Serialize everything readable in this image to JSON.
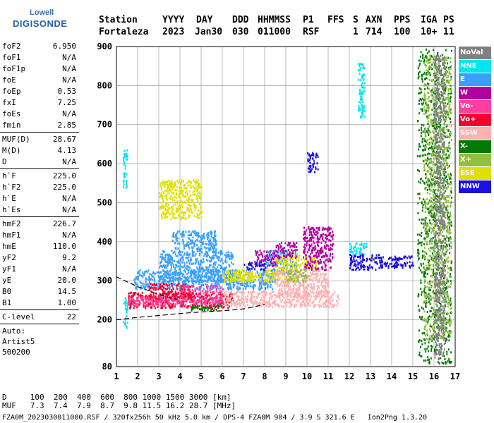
{
  "logo": {
    "line1": "Lowell",
    "line2": "DIGISONDE"
  },
  "header": {
    "labels": [
      "Station",
      "YYYY",
      "DAY",
      "DDD",
      "HHMMSS",
      "P1",
      "FFS",
      "S",
      "AXN",
      "PPS",
      "IGA",
      "PS"
    ],
    "values": [
      "Fortaleza",
      "2023",
      "Jan30",
      "030",
      "011000",
      "RSF",
      "",
      "1",
      "714",
      "100",
      "10+",
      "11"
    ]
  },
  "params": [
    [
      {
        "name": "foF2",
        "value": "6.950"
      },
      {
        "name": "foF1",
        "value": "N/A"
      },
      {
        "name": "foF1p",
        "value": "N/A"
      },
      {
        "name": "foE",
        "value": "N/A"
      },
      {
        "name": "foEp",
        "value": "0.53"
      },
      {
        "name": "fxI",
        "value": "7.25"
      },
      {
        "name": "foEs",
        "value": "N/A"
      },
      {
        "name": "fmin",
        "value": "2.85"
      }
    ],
    [
      {
        "name": "MUF(D)",
        "value": "28.67"
      },
      {
        "name": "M(D)",
        "value": "4.13"
      },
      {
        "name": "D",
        "value": "N/A"
      }
    ],
    [
      {
        "name": "h`F",
        "value": "225.0"
      },
      {
        "name": "h`F2",
        "value": "225.0"
      },
      {
        "name": "h`E",
        "value": "N/A"
      },
      {
        "name": "h`Es",
        "value": "N/A"
      }
    ],
    [
      {
        "name": "hmF2",
        "value": "226.7"
      },
      {
        "name": "hmF1",
        "value": "N/A"
      },
      {
        "name": "hmE",
        "value": "110.0"
      },
      {
        "name": "yF2",
        "value": "9.2"
      },
      {
        "name": "yF1",
        "value": "N/A"
      },
      {
        "name": "yE",
        "value": "20.0"
      },
      {
        "name": "B0",
        "value": "14.5"
      },
      {
        "name": "B1",
        "value": "1.00"
      }
    ],
    [
      {
        "name": "C-level",
        "value": "22"
      }
    ]
  ],
  "auto": [
    "Auto:",
    "Artist5",
    "500200"
  ],
  "legend": [
    {
      "label": "NoVal",
      "color": "#808080"
    },
    {
      "label": "NNE",
      "color": "#00e5ee"
    },
    {
      "label": "E",
      "color": "#3aa0ff"
    },
    {
      "label": "W",
      "color": "#b000a0"
    },
    {
      "label": "Vo-",
      "color": "#ff40a0"
    },
    {
      "label": "Vo+",
      "color": "#f00030"
    },
    {
      "label": "SSW",
      "color": "#ffb0b0"
    },
    {
      "label": "X-",
      "color": "#007a00"
    },
    {
      "label": "X+",
      "color": "#90c040"
    },
    {
      "label": "SSE",
      "color": "#e0e000"
    },
    {
      "label": "NNW",
      "color": "#1a10e0"
    }
  ],
  "muf_table": {
    "row1": "D     100  200  400  600  800 1000 1500 3000 [km]",
    "row2": "MUF   7.3  7.4  7.9  8.7  9.8 11.5 16.2 28.7 [MHz]"
  },
  "footer": "FZA0M_2023030011000.RSF / 320fx256h 50 kHz 5.0 km / DPS-4 FZA0M 904 / 3.9 S 321.6 E   Ion2Png 1.3.20",
  "chart_data": {
    "type": "scatter",
    "title": "",
    "xlabel": "",
    "ylabel": "",
    "xlim": [
      1,
      17
    ],
    "ylim": [
      80,
      900
    ],
    "x_ticks": [
      1,
      2,
      3,
      4,
      5,
      6,
      7,
      8,
      9,
      10,
      11,
      12,
      13,
      14,
      15,
      16,
      17
    ],
    "y_ticks": [
      80,
      200,
      300,
      400,
      500,
      600,
      700,
      800,
      900
    ],
    "grid": true,
    "profile_curve": [
      [
        1.0,
        200
      ],
      [
        2.0,
        206
      ],
      [
        3.0,
        211
      ],
      [
        4.0,
        216
      ],
      [
        5.0,
        220
      ],
      [
        6.0,
        223
      ],
      [
        6.5,
        225
      ],
      [
        7.0,
        228
      ],
      [
        7.5,
        233
      ],
      [
        8.0,
        240
      ]
    ],
    "profile_upper": [
      [
        1.0,
        310
      ],
      [
        2.0,
        285
      ],
      [
        3.0,
        265
      ],
      [
        4.0,
        250
      ]
    ],
    "series": [
      {
        "color": "#3aa0ff",
        "regions": [
          [
            1.8,
            8.5,
            280,
            330
          ],
          [
            3.0,
            6.5,
            300,
            380
          ],
          [
            3.6,
            5.7,
            380,
            430
          ],
          [
            8.0,
            9.5,
            320,
            380
          ]
        ]
      },
      {
        "color": "#e0e000",
        "regions": [
          [
            3.0,
            5.0,
            460,
            560
          ],
          [
            6.0,
            9.5,
            300,
            330
          ],
          [
            8.5,
            10.5,
            330,
            370
          ],
          [
            6.5,
            7.5,
            300,
            320
          ]
        ]
      },
      {
        "color": "#f00030",
        "regions": [
          [
            1.5,
            6.5,
            232,
            272
          ],
          [
            2.5,
            4.5,
            255,
            295
          ]
        ]
      },
      {
        "color": "#ff40a0",
        "regions": [
          [
            1.5,
            6.0,
            238,
            262
          ],
          [
            4.0,
            6.0,
            270,
            290
          ]
        ]
      },
      {
        "color": "#ffb0b0",
        "regions": [
          [
            6.0,
            11.5,
            235,
            275
          ],
          [
            8.5,
            11.0,
            260,
            330
          ]
        ]
      },
      {
        "color": "#b000a0",
        "regions": [
          [
            9.8,
            11.2,
            330,
            440
          ],
          [
            8.5,
            9.5,
            360,
            400
          ],
          [
            7.5,
            8.5,
            340,
            380
          ]
        ]
      },
      {
        "color": "#1a10e0",
        "regions": [
          [
            12.0,
            13.5,
            330,
            370
          ],
          [
            13.5,
            15.0,
            335,
            365
          ],
          [
            10.0,
            10.5,
            580,
            630
          ],
          [
            7.0,
            8.0,
            330,
            350
          ]
        ]
      },
      {
        "color": "#00e5ee",
        "regions": [
          [
            12.0,
            12.8,
            370,
            400
          ],
          [
            1.3,
            1.5,
            180,
            260
          ],
          [
            1.3,
            1.5,
            540,
            640
          ],
          [
            12.4,
            12.7,
            720,
            860
          ]
        ]
      },
      {
        "color": "#007a00",
        "regions": [
          [
            15.2,
            16.8,
            90,
            900
          ],
          [
            4.5,
            6.0,
            225,
            240
          ]
        ]
      },
      {
        "color": "#90c040",
        "regions": [
          [
            15.5,
            16.8,
            150,
            880
          ],
          [
            9.0,
            10.0,
            300,
            330
          ]
        ]
      },
      {
        "color": "#808080",
        "regions": [
          [
            16.0,
            16.5,
            100,
            880
          ]
        ]
      }
    ]
  }
}
